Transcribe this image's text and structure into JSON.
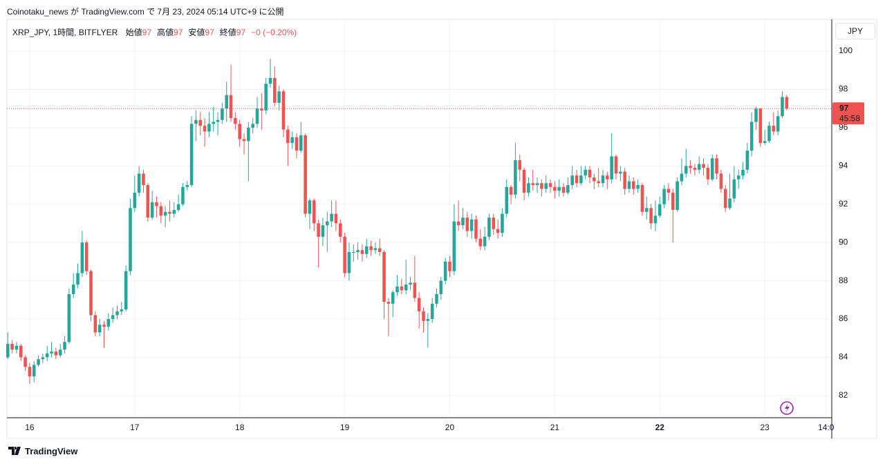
{
  "header": {
    "title": "Coinotaku_news が TradingView.com で 7月 23, 2024 05:14 UTC+9 に公開"
  },
  "legend": {
    "symbol": "XRP_JPY, 1時間, BITFLYER",
    "fields": [
      {
        "label": "始値",
        "value": "97"
      },
      {
        "label": "高値",
        "value": "97"
      },
      {
        "label": "安値",
        "value": "97"
      },
      {
        "label": "終値",
        "value": "97"
      }
    ],
    "change": "−0 (−0.20%)"
  },
  "currency": "JPY",
  "footer": {
    "brand": "TradingView"
  },
  "chart_data": {
    "type": "candlestick",
    "up_color": "#26a69a",
    "down_color": "#ef5350",
    "grid": true,
    "xlim": [
      -5.2,
      183.3
    ],
    "ylim": [
      80.84,
      101.59
    ],
    "xticks": [
      {
        "value": 0,
        "label": "16"
      },
      {
        "value": 24,
        "label": "17"
      },
      {
        "value": 48,
        "label": "18"
      },
      {
        "value": 72,
        "label": "19"
      },
      {
        "value": 96,
        "label": "20"
      },
      {
        "value": 120,
        "label": "21"
      },
      {
        "value": 144,
        "label": "22",
        "bold": true
      },
      {
        "value": 168,
        "label": "23"
      },
      {
        "value": 182,
        "label": "14:0"
      }
    ],
    "yticks": [
      82,
      84,
      86,
      88,
      90,
      92,
      94,
      96,
      98,
      100
    ],
    "last_price": {
      "value": 97,
      "countdown": "45:58",
      "color": "#ef5350"
    },
    "x": [
      -5,
      -4,
      -3,
      -2,
      -1,
      0,
      1,
      2,
      3,
      4,
      5,
      6,
      7,
      8,
      9,
      10,
      11,
      12,
      13,
      14,
      15,
      16,
      17,
      18,
      19,
      20,
      21,
      22,
      23,
      24,
      25,
      26,
      27,
      28,
      29,
      30,
      31,
      32,
      33,
      34,
      35,
      36,
      37,
      38,
      39,
      40,
      41,
      42,
      43,
      44,
      45,
      46,
      47,
      48,
      49,
      50,
      51,
      52,
      53,
      54,
      55,
      56,
      57,
      58,
      59,
      60,
      61,
      62,
      63,
      64,
      65,
      66,
      67,
      68,
      69,
      70,
      71,
      72,
      73,
      74,
      75,
      76,
      77,
      78,
      79,
      80,
      81,
      82,
      83,
      84,
      85,
      86,
      87,
      88,
      89,
      90,
      91,
      92,
      93,
      94,
      95,
      96,
      97,
      98,
      99,
      100,
      101,
      102,
      103,
      104,
      105,
      106,
      107,
      108,
      109,
      110,
      111,
      112,
      113,
      114,
      115,
      116,
      117,
      118,
      119,
      120,
      121,
      122,
      123,
      124,
      125,
      126,
      127,
      128,
      129,
      130,
      131,
      132,
      133,
      134,
      135,
      136,
      137,
      138,
      139,
      140,
      141,
      142,
      143,
      144,
      145,
      146,
      147,
      148,
      149,
      150,
      151,
      152,
      153,
      154,
      155,
      156,
      157,
      158,
      159,
      160,
      161,
      162,
      163,
      164,
      165,
      166,
      167,
      168,
      169,
      170,
      171,
      172,
      173
    ],
    "open": [
      84.0,
      84.7,
      84.4,
      84.6,
      84.0,
      83.5,
      83.0,
      83.6,
      83.9,
      84.0,
      84.2,
      84.3,
      84.1,
      84.4,
      84.8,
      87.3,
      87.8,
      88.4,
      90.0,
      88.5,
      86.2,
      85.3,
      85.7,
      85.6,
      86.0,
      86.2,
      86.4,
      86.5,
      88.5,
      91.8,
      92.6,
      93.6,
      93.0,
      91.3,
      92.1,
      91.9,
      91.4,
      91.6,
      91.5,
      91.7,
      92.0,
      92.9,
      93.0,
      96.2,
      96.4,
      96.1,
      95.8,
      96.2,
      96.3,
      96.4,
      97.0,
      97.7,
      96.5,
      96.2,
      95.4,
      95.3,
      96.0,
      96.2,
      97.0,
      96.9,
      98.3,
      98.6,
      97.3,
      97.9,
      95.9,
      95.2,
      95.5,
      94.8,
      95.6,
      91.5,
      92.2,
      91.0,
      90.3,
      90.9,
      91.1,
      91.5,
      91.0,
      90.3,
      88.4,
      89.5,
      89.5,
      89.6,
      89.4,
      89.8,
      89.6,
      89.7,
      89.5,
      86.9,
      86.8,
      87.4,
      87.7,
      87.5,
      87.8,
      87.9,
      87.1,
      86.4,
      85.9,
      86.0,
      86.8,
      87.3,
      88.0,
      89.0,
      88.5,
      91.1,
      90.9,
      91.3,
      90.6,
      91.2,
      90.2,
      89.8,
      90.3,
      91.3,
      90.7,
      90.5,
      91.5,
      92.9,
      92.5,
      94.3,
      93.8,
      92.6,
      93.1,
      93.0,
      93.1,
      92.8,
      93.1,
      92.9,
      92.7,
      92.9,
      92.6,
      93.0,
      93.5,
      93.1,
      93.5,
      93.8,
      93.4,
      93.2,
      93.1,
      93.5,
      93.3,
      94.5,
      93.6,
      93.7,
      92.8,
      93.2,
      92.8,
      93.0,
      91.6,
      91.8,
      91.0,
      91.4,
      92.0,
      92.8,
      92.6,
      91.7,
      93.2,
      93.6,
      94.0,
      93.9,
      93.8,
      94.1,
      93.9,
      93.3,
      94.4,
      93.6,
      92.8,
      91.8,
      92.3,
      93.3,
      93.5,
      93.8,
      94.8,
      96.3,
      97.0,
      95.2,
      95.3,
      96.1,
      95.8,
      96.6,
      97.6
    ],
    "high": [
      85.3,
      84.9,
      84.8,
      84.7,
      84.1,
      83.7,
      83.8,
      84.1,
      84.2,
      84.6,
      84.8,
      84.5,
      84.7,
      85.1,
      87.6,
      88.4,
      88.9,
      90.6,
      90.1,
      88.6,
      86.4,
      86.0,
      85.9,
      86.3,
      86.6,
      86.7,
      86.9,
      88.8,
      92.3,
      93.5,
      94.0,
      93.8,
      93.1,
      92.7,
      92.4,
      92.1,
      91.9,
      92.2,
      92.1,
      92.5,
      93.1,
      93.2,
      96.6,
      96.9,
      96.8,
      96.5,
      96.8,
      97.1,
      96.8,
      97.3,
      98.4,
      99.3,
      96.8,
      96.4,
      95.7,
      96.3,
      96.5,
      97.6,
      97.8,
      98.6,
      99.6,
      99.2,
      98.2,
      98.0,
      96.1,
      95.8,
      95.7,
      96.3,
      95.7,
      92.3,
      92.3,
      91.2,
      91.3,
      91.6,
      92.2,
      92.2,
      91.2,
      90.5,
      90.0,
      89.9,
      90.0,
      89.9,
      90.2,
      90.1,
      90.0,
      90.2,
      89.6,
      87.1,
      87.5,
      88.3,
      88.1,
      89.1,
      88.2,
      89.3,
      87.4,
      86.6,
      86.3,
      87.1,
      87.6,
      88.2,
      89.2,
      89.3,
      92.0,
      92.2,
      91.8,
      91.6,
      91.5,
      91.4,
      90.7,
      90.8,
      91.5,
      91.5,
      91.2,
      91.8,
      93.3,
      93.0,
      95.2,
      94.6,
      93.9,
      93.4,
      93.8,
      93.4,
      93.3,
      93.5,
      93.3,
      93.2,
      93.3,
      93.1,
      93.4,
      94.0,
      93.8,
      94.0,
      94.0,
      94.0,
      93.6,
      93.9,
      93.8,
      93.7,
      95.7,
      94.6,
      94.0,
      93.9,
      93.5,
      93.4,
      93.3,
      93.1,
      92.4,
      92.0,
      92.2,
      92.4,
      93.0,
      93.1,
      92.8,
      93.4,
      94.4,
      94.9,
      94.3,
      94.1,
      94.5,
      94.4,
      94.1,
      94.6,
      94.6,
      93.8,
      93.0,
      93.6,
      94.0,
      93.8,
      94.2,
      95.2,
      96.8,
      97.1,
      97.0,
      95.9,
      96.3,
      96.8,
      96.9,
      97.9,
      97.7
    ],
    "low": [
      83.9,
      84.2,
      84.2,
      83.8,
      83.3,
      82.6,
      82.7,
      83.5,
      83.7,
      83.8,
      84.0,
      83.9,
      84.0,
      84.2,
      84.7,
      87.1,
      87.6,
      88.2,
      88.3,
      85.9,
      85.1,
      85.1,
      84.5,
      85.4,
      85.8,
      86.0,
      86.2,
      86.4,
      88.3,
      91.6,
      92.4,
      92.6,
      91.1,
      91.2,
      91.3,
      91.0,
      90.8,
      91.1,
      91.3,
      91.6,
      91.9,
      92.7,
      92.9,
      95.3,
      95.6,
      95.0,
      95.5,
      95.8,
      95.6,
      96.2,
      96.3,
      96.3,
      95.9,
      95.0,
      94.6,
      93.2,
      95.7,
      96.0,
      95.9,
      96.7,
      98.1,
      97.1,
      96.9,
      95.5,
      94.0,
      94.9,
      94.4,
      94.7,
      91.3,
      90.7,
      90.6,
      88.7,
      89.8,
      89.5,
      90.8,
      90.6,
      90.0,
      88.2,
      88.0,
      89.0,
      89.1,
      89.0,
      89.2,
      89.3,
      89.4,
      89.3,
      86.0,
      85.1,
      86.1,
      87.2,
      87.3,
      87.3,
      87.5,
      86.9,
      85.5,
      85.3,
      84.5,
      85.8,
      86.6,
      87.0,
      87.8,
      88.2,
      88.3,
      90.6,
      90.7,
      90.3,
      90.2,
      90.0,
      89.6,
      89.6,
      90.1,
      90.4,
      90.2,
      90.3,
      91.3,
      92.0,
      92.3,
      93.2,
      92.2,
      92.4,
      92.7,
      92.6,
      92.4,
      92.6,
      92.6,
      92.3,
      92.4,
      92.4,
      92.5,
      92.8,
      92.9,
      93.0,
      93.3,
      93.1,
      92.8,
      92.9,
      92.9,
      92.8,
      93.1,
      93.3,
      93.2,
      92.5,
      92.6,
      92.5,
      92.6,
      91.4,
      91.2,
      90.7,
      90.6,
      91.3,
      91.8,
      92.2,
      90.0,
      91.6,
      93.0,
      93.4,
      93.6,
      93.5,
      93.6,
      93.5,
      93.0,
      93.2,
      93.3,
      92.6,
      91.6,
      91.7,
      92.1,
      92.8,
      93.3,
      93.6,
      94.5,
      95.9,
      95.0,
      95.1,
      95.2,
      95.6,
      95.6,
      96.5,
      96.9
    ],
    "close": [
      84.7,
      84.4,
      84.6,
      84.0,
      83.5,
      83.0,
      83.6,
      83.9,
      84.0,
      84.2,
      84.3,
      84.1,
      84.4,
      84.8,
      87.3,
      87.8,
      88.4,
      90.0,
      88.5,
      86.2,
      85.3,
      85.7,
      85.6,
      86.0,
      86.2,
      86.4,
      86.5,
      88.5,
      91.8,
      92.6,
      93.6,
      93.0,
      91.3,
      92.1,
      91.9,
      91.4,
      91.6,
      91.5,
      91.7,
      92.0,
      92.9,
      93.0,
      96.2,
      96.4,
      96.1,
      95.8,
      96.2,
      96.3,
      96.4,
      97.0,
      97.7,
      96.5,
      96.2,
      95.4,
      95.3,
      96.0,
      96.2,
      97.0,
      96.9,
      98.3,
      98.6,
      97.3,
      97.9,
      95.9,
      95.2,
      95.5,
      94.8,
      95.6,
      91.5,
      92.2,
      91.0,
      90.3,
      90.9,
      91.1,
      91.5,
      91.0,
      90.3,
      88.4,
      89.5,
      89.5,
      89.6,
      89.4,
      89.8,
      89.6,
      89.7,
      89.5,
      86.9,
      86.8,
      87.4,
      87.7,
      87.5,
      87.8,
      87.9,
      87.1,
      86.4,
      85.9,
      86.0,
      86.8,
      87.3,
      88.0,
      89.0,
      88.5,
      91.1,
      90.9,
      91.3,
      90.6,
      91.2,
      90.2,
      89.8,
      90.3,
      91.3,
      90.7,
      90.5,
      91.5,
      92.9,
      92.5,
      94.3,
      93.8,
      92.6,
      93.1,
      93.0,
      93.1,
      92.8,
      93.1,
      92.9,
      92.7,
      92.9,
      92.6,
      93.0,
      93.5,
      93.1,
      93.5,
      93.8,
      93.4,
      93.2,
      93.1,
      93.5,
      93.3,
      94.5,
      93.6,
      93.7,
      92.8,
      93.2,
      92.8,
      93.0,
      91.6,
      91.8,
      91.0,
      91.4,
      92.0,
      92.8,
      92.6,
      91.7,
      93.2,
      93.6,
      94.0,
      93.9,
      93.8,
      94.1,
      93.9,
      93.3,
      94.4,
      93.6,
      92.8,
      91.8,
      92.3,
      93.3,
      93.5,
      93.8,
      94.8,
      96.3,
      97.0,
      95.2,
      95.3,
      96.1,
      95.8,
      96.6,
      97.6,
      97.0
    ]
  }
}
